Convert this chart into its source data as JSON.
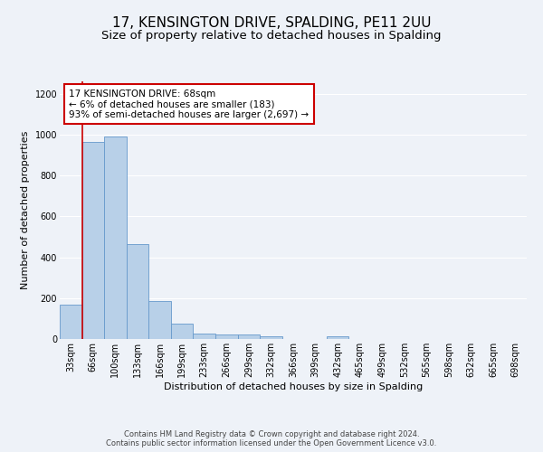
{
  "title": "17, KENSINGTON DRIVE, SPALDING, PE11 2UU",
  "subtitle": "Size of property relative to detached houses in Spalding",
  "xlabel": "Distribution of detached houses by size in Spalding",
  "ylabel": "Number of detached properties",
  "footer_line1": "Contains HM Land Registry data © Crown copyright and database right 2024.",
  "footer_line2": "Contains public sector information licensed under the Open Government Licence v3.0.",
  "categories": [
    "33sqm",
    "66sqm",
    "100sqm",
    "133sqm",
    "166sqm",
    "199sqm",
    "233sqm",
    "266sqm",
    "299sqm",
    "332sqm",
    "366sqm",
    "399sqm",
    "432sqm",
    "465sqm",
    "499sqm",
    "532sqm",
    "565sqm",
    "598sqm",
    "632sqm",
    "665sqm",
    "698sqm"
  ],
  "values": [
    170,
    965,
    990,
    465,
    185,
    75,
    28,
    22,
    20,
    12,
    0,
    0,
    12,
    0,
    0,
    0,
    0,
    0,
    0,
    0,
    0
  ],
  "bar_color": "#b8d0e8",
  "bar_edge_color": "#6699cc",
  "ylim": [
    0,
    1260
  ],
  "yticks": [
    0,
    200,
    400,
    600,
    800,
    1000,
    1200
  ],
  "annotation_text": "17 KENSINGTON DRIVE: 68sqm\n← 6% of detached houses are smaller (183)\n93% of semi-detached houses are larger (2,697) →",
  "annotation_box_color": "#ffffff",
  "annotation_box_edgecolor": "#cc0000",
  "vline_color": "#cc0000",
  "bg_color": "#eef2f8",
  "grid_color": "#ffffff",
  "title_fontsize": 11,
  "subtitle_fontsize": 9.5,
  "axis_label_fontsize": 8,
  "tick_fontsize": 7,
  "annotation_fontsize": 7.5,
  "footer_fontsize": 6
}
